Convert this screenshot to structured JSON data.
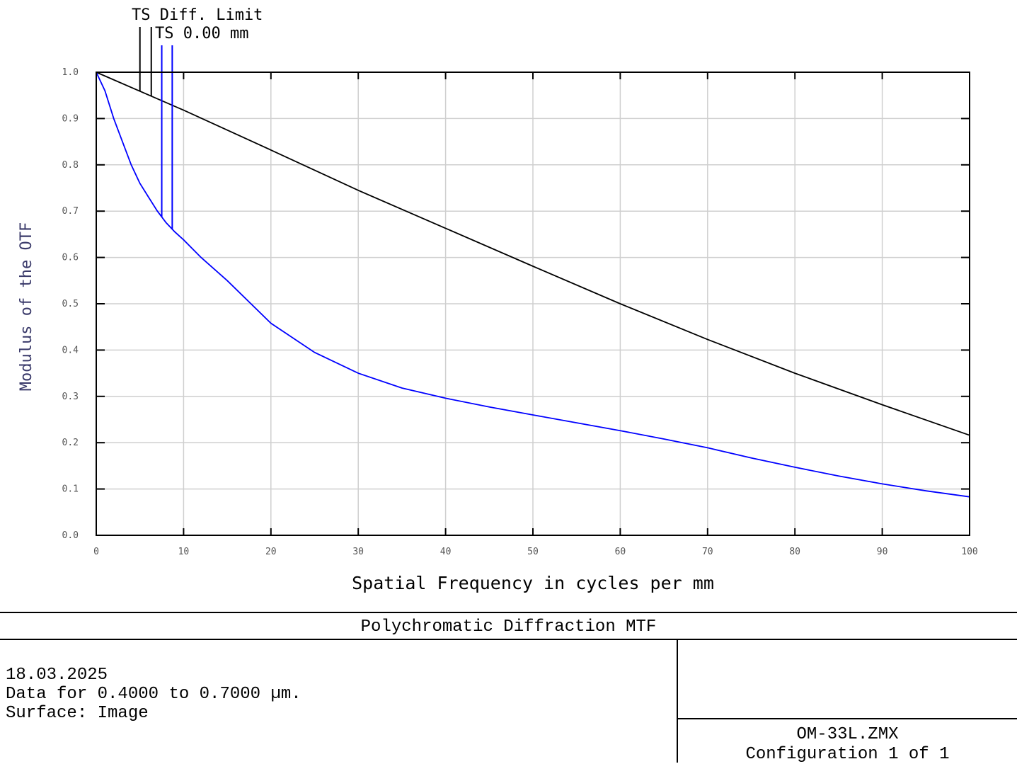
{
  "chart_data": {
    "type": "line",
    "xlabel": "Spatial Frequency in cycles per mm",
    "ylabel": "Modulus of the OTF",
    "xlim": [
      0,
      100
    ],
    "ylim": [
      0,
      1
    ],
    "grid": true,
    "x_ticks": [
      "0",
      "10",
      "20",
      "30",
      "40",
      "50",
      "60",
      "70",
      "80",
      "90",
      "100"
    ],
    "y_ticks": [
      "0.0",
      "0.1",
      "0.2",
      "0.3",
      "0.4",
      "0.5",
      "0.6",
      "0.7",
      "0.8",
      "0.9",
      "1.0"
    ],
    "legend_placement": "top-left",
    "series": [
      {
        "name": "TS Diff. Limit",
        "color": "#000000",
        "x": [
          0,
          10,
          20,
          30,
          40,
          50,
          60,
          70,
          80,
          90,
          100
        ],
        "y": [
          1.0,
          0.918,
          0.832,
          0.745,
          0.663,
          0.581,
          0.5,
          0.423,
          0.35,
          0.282,
          0.216
        ]
      },
      {
        "name": "TS 0.00 mm",
        "color": "#0000ff",
        "x": [
          0,
          1,
          2,
          3,
          4,
          5,
          6,
          7,
          8,
          9,
          10,
          12,
          15,
          20,
          25,
          30,
          35,
          40,
          45,
          50,
          55,
          60,
          65,
          70,
          75,
          80,
          85,
          90,
          95,
          100
        ],
        "y": [
          1.0,
          0.96,
          0.9,
          0.85,
          0.8,
          0.76,
          0.73,
          0.7,
          0.675,
          0.655,
          0.638,
          0.6,
          0.55,
          0.458,
          0.395,
          0.35,
          0.318,
          0.296,
          0.277,
          0.26,
          0.243,
          0.226,
          0.208,
          0.189,
          0.167,
          0.147,
          0.128,
          0.111,
          0.096,
          0.083
        ]
      }
    ]
  },
  "footer": {
    "title": "Polychromatic Diffraction MTF",
    "date": "18.03.2025",
    "data_range": "Data for 0.4000 to 0.7000 µm.",
    "surface": "Surface: Image",
    "file": "OM-33L.ZMX",
    "config": "Configuration 1 of 1"
  }
}
